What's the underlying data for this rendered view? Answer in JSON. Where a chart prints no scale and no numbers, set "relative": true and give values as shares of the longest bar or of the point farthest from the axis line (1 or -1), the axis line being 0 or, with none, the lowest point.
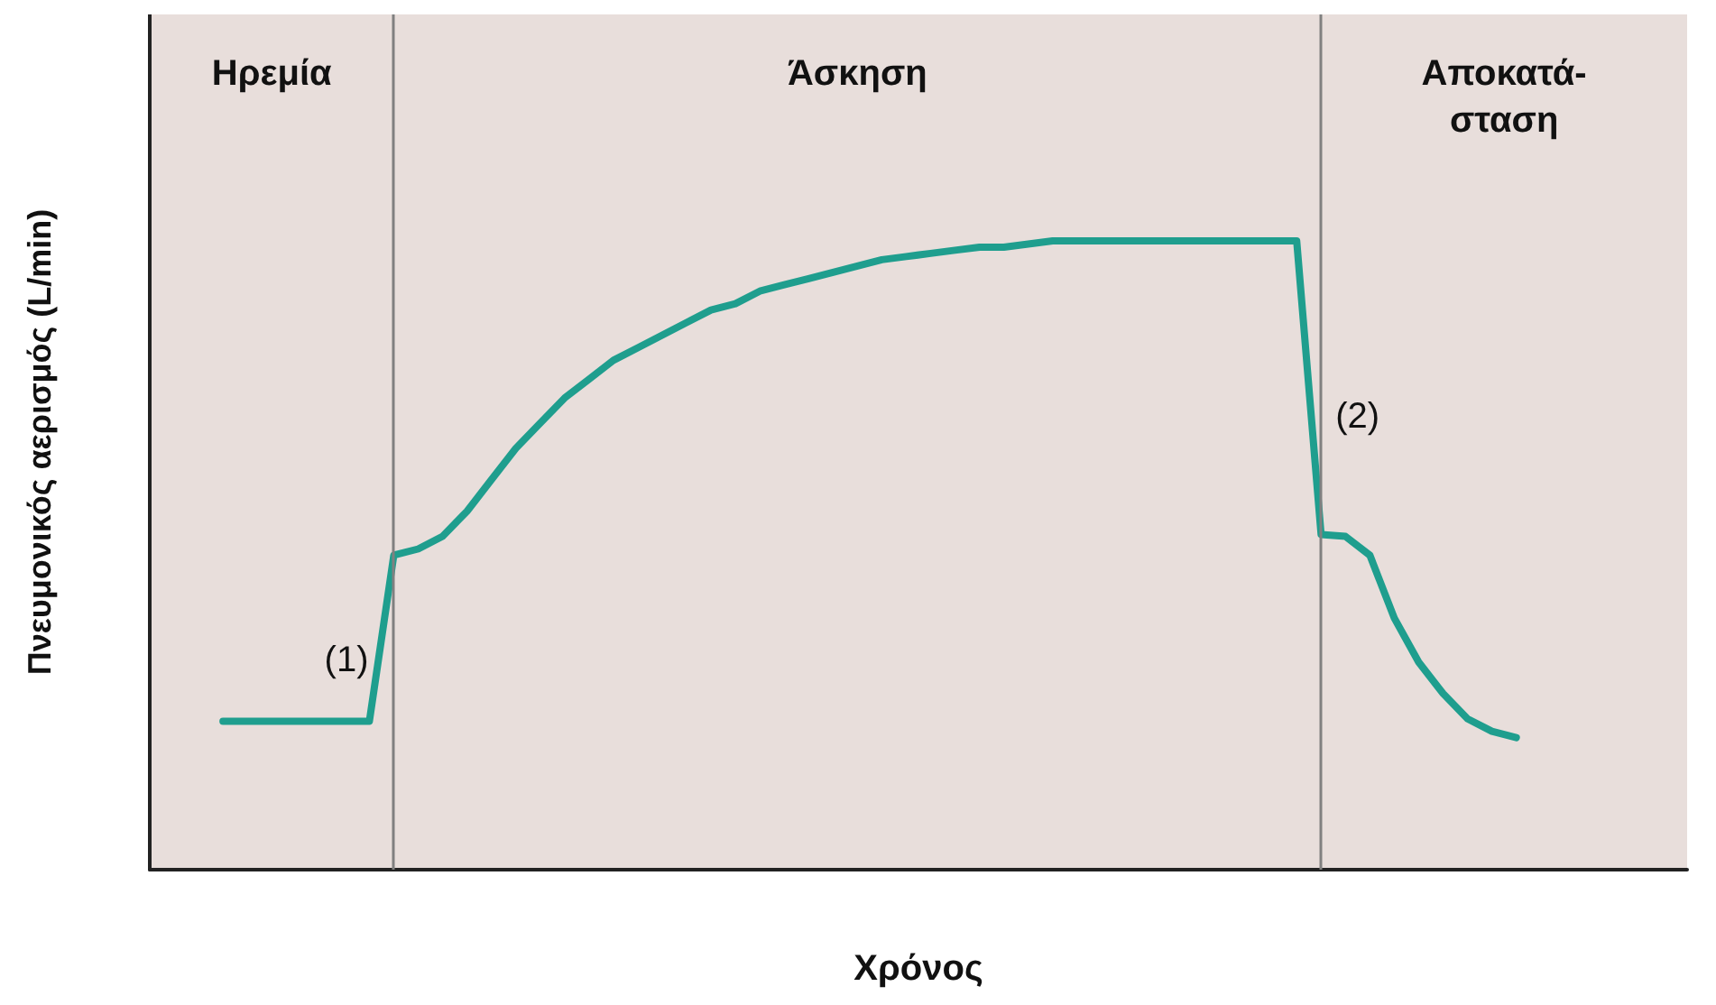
{
  "chart_data": {
    "type": "line",
    "relative": true,
    "xlabel": "Χρόνος",
    "ylabel": "Πνευμονικός αερισμός (L/min)",
    "categories": [
      null,
      null,
      null,
      null,
      null,
      null,
      null,
      null,
      null,
      null,
      null,
      null,
      null,
      null,
      null,
      null,
      null,
      null,
      null,
      null,
      null,
      null,
      null,
      null,
      null,
      null,
      null,
      null,
      null,
      null,
      null,
      null,
      null,
      null,
      null,
      null,
      null,
      null,
      null,
      null,
      null,
      null,
      null,
      null,
      null,
      null,
      null,
      null,
      null,
      null,
      null,
      null,
      null,
      null,
      null,
      null,
      null,
      null,
      null,
      null,
      null,
      null,
      null,
      null
    ],
    "series": [
      {
        "color": "#1f9e8e",
        "values": [
          null,
          null,
          null,
          0.236,
          0.236,
          0.236,
          0.236,
          0.236,
          0.236,
          0.236,
          0.5,
          0.51,
          0.53,
          0.57,
          0.62,
          0.67,
          0.71,
          0.75,
          0.78,
          0.81,
          0.83,
          0.85,
          0.87,
          0.89,
          0.9,
          0.92,
          0.93,
          0.94,
          0.95,
          0.96,
          0.97,
          0.975,
          0.98,
          0.985,
          0.99,
          0.99,
          0.995,
          1,
          1,
          1,
          1,
          1,
          1,
          1,
          1,
          1,
          1,
          1,
          0.533,
          0.53,
          0.5,
          0.4,
          0.33,
          0.28,
          0.24,
          0.22,
          0.21,
          null,
          null,
          null,
          null,
          null,
          null,
          null
        ]
      }
    ],
    "annotations": [
      "Ηρεμία",
      "Άσκηση",
      "Αποκατά-\nσταση",
      "(1)",
      "(2)"
    ],
    "grid": false,
    "marker": "none",
    "line_style": "solid"
  }
}
